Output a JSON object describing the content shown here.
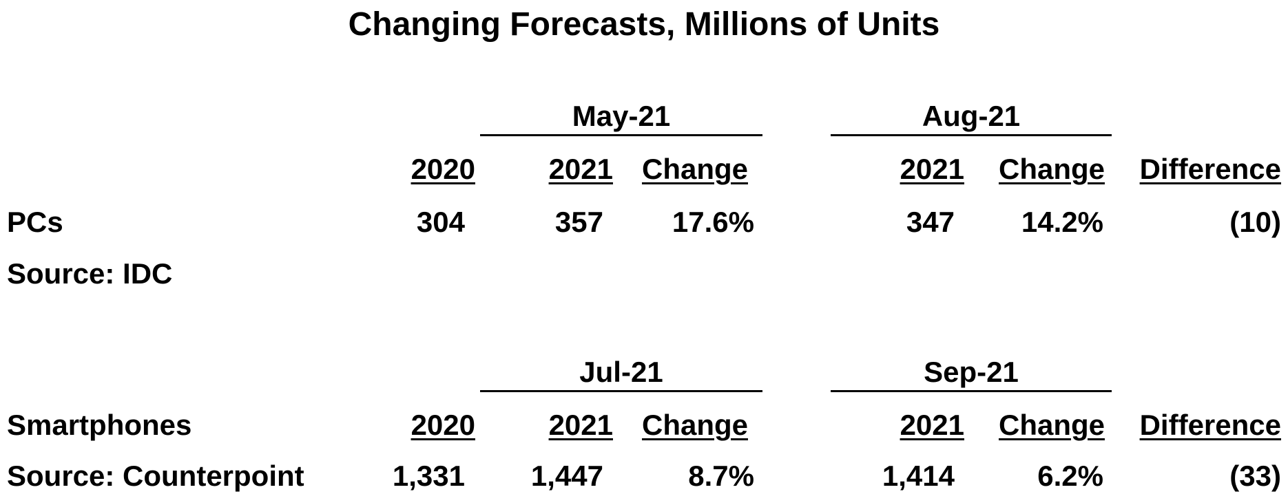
{
  "title": "Changing Forecasts, Millions of Units",
  "pcs": {
    "group1_label": "May-21",
    "group2_label": "Aug-21",
    "headers": {
      "y2020": "2020",
      "y2021_a": "2021",
      "change_a": "Change",
      "y2021_b": "2021",
      "change_b": "Change",
      "difference": "Difference"
    },
    "row_label": "PCs",
    "source": "Source: IDC",
    "values": {
      "y2020": "304",
      "y2021_a": "357",
      "change_a": "17.6%",
      "y2021_b": "347",
      "change_b": "14.2%",
      "difference": "(10)"
    }
  },
  "smartphones": {
    "group1_label": "Jul-21",
    "group2_label": "Sep-21",
    "row_label": "Smartphones",
    "headers": {
      "y2020": "2020",
      "y2021_a": "2021",
      "change_a": "Change",
      "y2021_b": "2021",
      "change_b": "Change",
      "difference": "Difference"
    },
    "source": "Source: Counterpoint",
    "values": {
      "y2020": "1,331",
      "y2021_a": "1,447",
      "change_a": "8.7%",
      "y2021_b": "1,414",
      "change_b": "6.2%",
      "difference": "(33)"
    }
  }
}
